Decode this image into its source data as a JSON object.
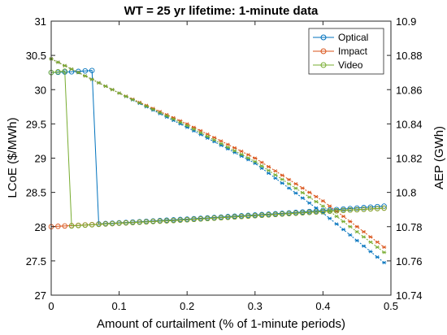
{
  "chart_data": {
    "type": "line",
    "title": "WT = 25 yr lifetime: 1-minute data",
    "xlabel": "Amount of curtailment (% of 1-minute periods)",
    "ylabel_left": "LCoE ($/MWh)",
    "ylabel_right": "AEP (GWh)",
    "xlim": [
      0,
      0.5
    ],
    "ylim_left": [
      27,
      31
    ],
    "ylim_right": [
      10.74,
      10.9
    ],
    "x_ticks": [
      "0",
      "0.1",
      "0.2",
      "0.3",
      "0.4",
      "0.5"
    ],
    "y_ticks_left": [
      "27",
      "27.5",
      "28",
      "28.5",
      "29",
      "29.5",
      "30",
      "30.5",
      "31"
    ],
    "y_ticks_right": [
      "10.74",
      "10.76",
      "10.78",
      "10.8",
      "10.82",
      "10.84",
      "10.86",
      "10.88",
      "10.9"
    ],
    "legend_position": "top-right",
    "x_step": 0.01,
    "x_end": 0.49,
    "series": [
      {
        "name": "Optical",
        "color": "#0072BD",
        "lcoe_marker": "circle",
        "lcoe_key_points": [
          [
            0,
            30.25
          ],
          [
            0.03,
            30.26
          ],
          [
            0.06,
            30.28
          ],
          [
            0.07,
            28.04
          ],
          [
            0.2,
            28.11
          ],
          [
            0.35,
            28.2
          ],
          [
            0.49,
            28.3
          ]
        ],
        "aep_marker": "asterisk",
        "aep_key_points": [
          [
            0,
            10.878
          ],
          [
            0.1,
            10.858
          ],
          [
            0.2,
            10.838
          ],
          [
            0.3,
            10.817
          ],
          [
            0.4,
            10.788
          ],
          [
            0.49,
            10.759
          ]
        ]
      },
      {
        "name": "Impact",
        "color": "#D95319",
        "lcoe_marker": "circle",
        "lcoe_key_points": [
          [
            0,
            28.0
          ],
          [
            0.1,
            28.05
          ],
          [
            0.2,
            28.1
          ],
          [
            0.3,
            28.16
          ],
          [
            0.4,
            28.22
          ],
          [
            0.49,
            28.27
          ]
        ],
        "aep_marker": "asterisk",
        "aep_key_points": [
          [
            0,
            10.878
          ],
          [
            0.1,
            10.858
          ],
          [
            0.2,
            10.84
          ],
          [
            0.3,
            10.82
          ],
          [
            0.4,
            10.795
          ],
          [
            0.49,
            10.768
          ]
        ]
      },
      {
        "name": "Video",
        "color": "#77AC30",
        "lcoe_marker": "circle",
        "lcoe_key_points": [
          [
            0,
            30.25
          ],
          [
            0.02,
            30.27
          ],
          [
            0.03,
            28.01
          ],
          [
            0.1,
            28.05
          ],
          [
            0.2,
            28.1
          ],
          [
            0.3,
            28.16
          ],
          [
            0.4,
            28.22
          ],
          [
            0.49,
            28.27
          ]
        ],
        "aep_marker": "asterisk",
        "aep_key_points": [
          [
            0,
            10.878
          ],
          [
            0.1,
            10.858
          ],
          [
            0.2,
            10.839
          ],
          [
            0.3,
            10.818
          ],
          [
            0.4,
            10.792
          ],
          [
            0.49,
            10.765
          ]
        ]
      }
    ]
  }
}
